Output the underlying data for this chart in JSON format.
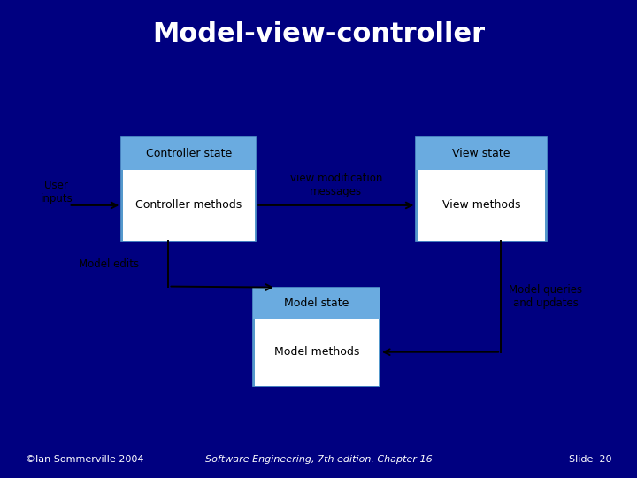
{
  "title": "Model-view-controller",
  "title_color": "#ffffff",
  "header_bg": "#000080",
  "red_line_color": "#cc0000",
  "diagram_bg": "#c8f0f8",
  "box_border_color": "#5599cc",
  "box_header_color": "#6aabe0",
  "box_body_color": "#ffffff",
  "arrow_color": "#000000",
  "footer_bg": "#00006a",
  "footer_color": "#ffffff",
  "footer_left": "©Ian Sommerville 2004",
  "footer_center": "Software Engineering, 7th edition. Chapter 16",
  "footer_right": "Slide  20",
  "controller_state_label": "Controller state",
  "controller_methods_label": "Controller methods",
  "view_state_label": "View state",
  "view_methods_label": "View methods",
  "model_state_label": "Model state",
  "model_methods_label": "Model methods",
  "user_inputs_label": "User\ninputs",
  "view_mod_label": "view modification\nmessages",
  "model_edits_label": "Model edits",
  "model_queries_label": "Model queries\nand updates"
}
